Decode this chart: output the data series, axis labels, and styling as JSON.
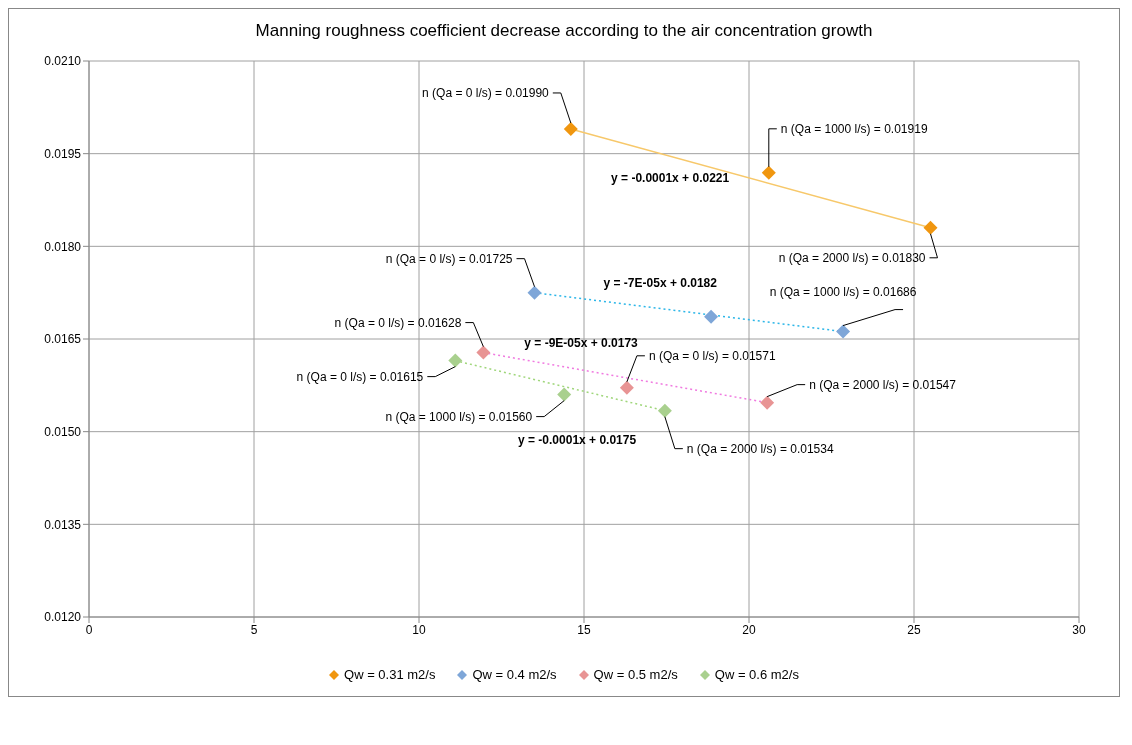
{
  "chart_data": {
    "type": "scatter",
    "title": "Manning roughness coefficient decrease according to the air concentration growth",
    "series": [
      {
        "name": "Qw = 0.31 m2/s",
        "marker": "diamond",
        "color": "#f0960f",
        "x": [
          14.6,
          20.6,
          25.5
        ],
        "values": [
          0.0199,
          0.01919,
          0.0183
        ]
      },
      {
        "name": "Qw = 0.4 m2/s",
        "marker": "diamond",
        "color": "#7ea6d8",
        "x": [
          13.5,
          18.85,
          22.85
        ],
        "values": [
          0.01725,
          0.01686,
          0.01662
        ]
      },
      {
        "name": "Qw = 0.5 m2/s",
        "marker": "diamond",
        "color": "#e89494",
        "x": [
          11.95,
          16.3,
          20.55
        ],
        "values": [
          0.01628,
          0.01571,
          0.01547
        ]
      },
      {
        "name": "Qw = 0.6 m2/s",
        "marker": "diamond",
        "color": "#a9d08e",
        "x": [
          11.1,
          14.4,
          17.45
        ],
        "values": [
          0.01615,
          0.0156,
          0.01534
        ]
      },
      {
        "type": "line",
        "marker": "none",
        "color": "#f7c86a",
        "line_style": "solid",
        "x": [
          14.6,
          25.5
        ],
        "values": [
          0.0199,
          0.0183
        ]
      },
      {
        "type": "line",
        "marker": "none",
        "color": "#2cb6e8",
        "line_style": "dotted",
        "x": [
          13.5,
          22.85
        ],
        "values": [
          0.01725,
          0.01662
        ]
      },
      {
        "type": "line",
        "marker": "none",
        "color": "#f07ae0",
        "line_style": "dotted",
        "x": [
          11.95,
          20.55
        ],
        "values": [
          0.01628,
          0.01547
        ]
      },
      {
        "type": "line",
        "marker": "none",
        "color": "#9fd67a",
        "line_style": "dotted",
        "x": [
          11.1,
          17.45
        ],
        "values": [
          0.01615,
          0.01534
        ]
      }
    ],
    "xlim": [
      0,
      30
    ],
    "xticks": [
      0,
      5,
      10,
      15,
      20,
      25,
      30
    ],
    "ylim": [
      0.012,
      0.021
    ],
    "yticks": [
      {
        "value": 0.012,
        "label": "0.0120"
      },
      {
        "value": 0.0135,
        "label": "0.0135"
      },
      {
        "value": 0.015,
        "label": "0.0150"
      },
      {
        "value": 0.0165,
        "label": "0.0165"
      },
      {
        "value": 0.018,
        "label": "0.0180"
      },
      {
        "value": 0.0195,
        "label": "0.0195"
      },
      {
        "value": 0.021,
        "label": "0.0210"
      }
    ],
    "grid": true,
    "legend": "bottom",
    "annotations": [
      {
        "text": "n (Qa = 0 l/s) = 0.01990",
        "x": 14.6,
        "y": 0.0199
      },
      {
        "text": "n (Qa = 1000 l/s) = 0.01919",
        "x": 20.6,
        "y": 0.01919
      },
      {
        "text": "n (Qa = 2000 l/s) = 0.01830",
        "x": 25.5,
        "y": 0.0183
      },
      {
        "text": "n (Qa = 0 l/s) = 0.01725",
        "x": 13.5,
        "y": 0.01725
      },
      {
        "text": "n (Qa = 1000 l/s) = 0.01686",
        "x": 22.85,
        "y": 0.01662
      },
      {
        "text": "n (Qa = 0 l/s) = 0.01628",
        "x": 11.95,
        "y": 0.01628
      },
      {
        "text": "n (Qa = 0 l/s) = 0.01571",
        "x": 16.3,
        "y": 0.01571
      },
      {
        "text": "n (Qa = 2000 l/s) = 0.01547",
        "x": 20.55,
        "y": 0.01547
      },
      {
        "text": "n (Qa = 0 l/s) = 0.01615",
        "x": 11.1,
        "y": 0.01615
      },
      {
        "text": "n (Qa = 1000 l/s) = 0.01560",
        "x": 14.4,
        "y": 0.0156
      },
      {
        "text": "n (Qa = 2000 l/s) = 0.01534",
        "x": 17.45,
        "y": 0.01534
      },
      "y = -0.0001x + 0.0221",
      "y = -7E-05x + 0.0182",
      "y = -9E-05x + 0.0173",
      "y = -0.0001x + 0.0175"
    ]
  }
}
